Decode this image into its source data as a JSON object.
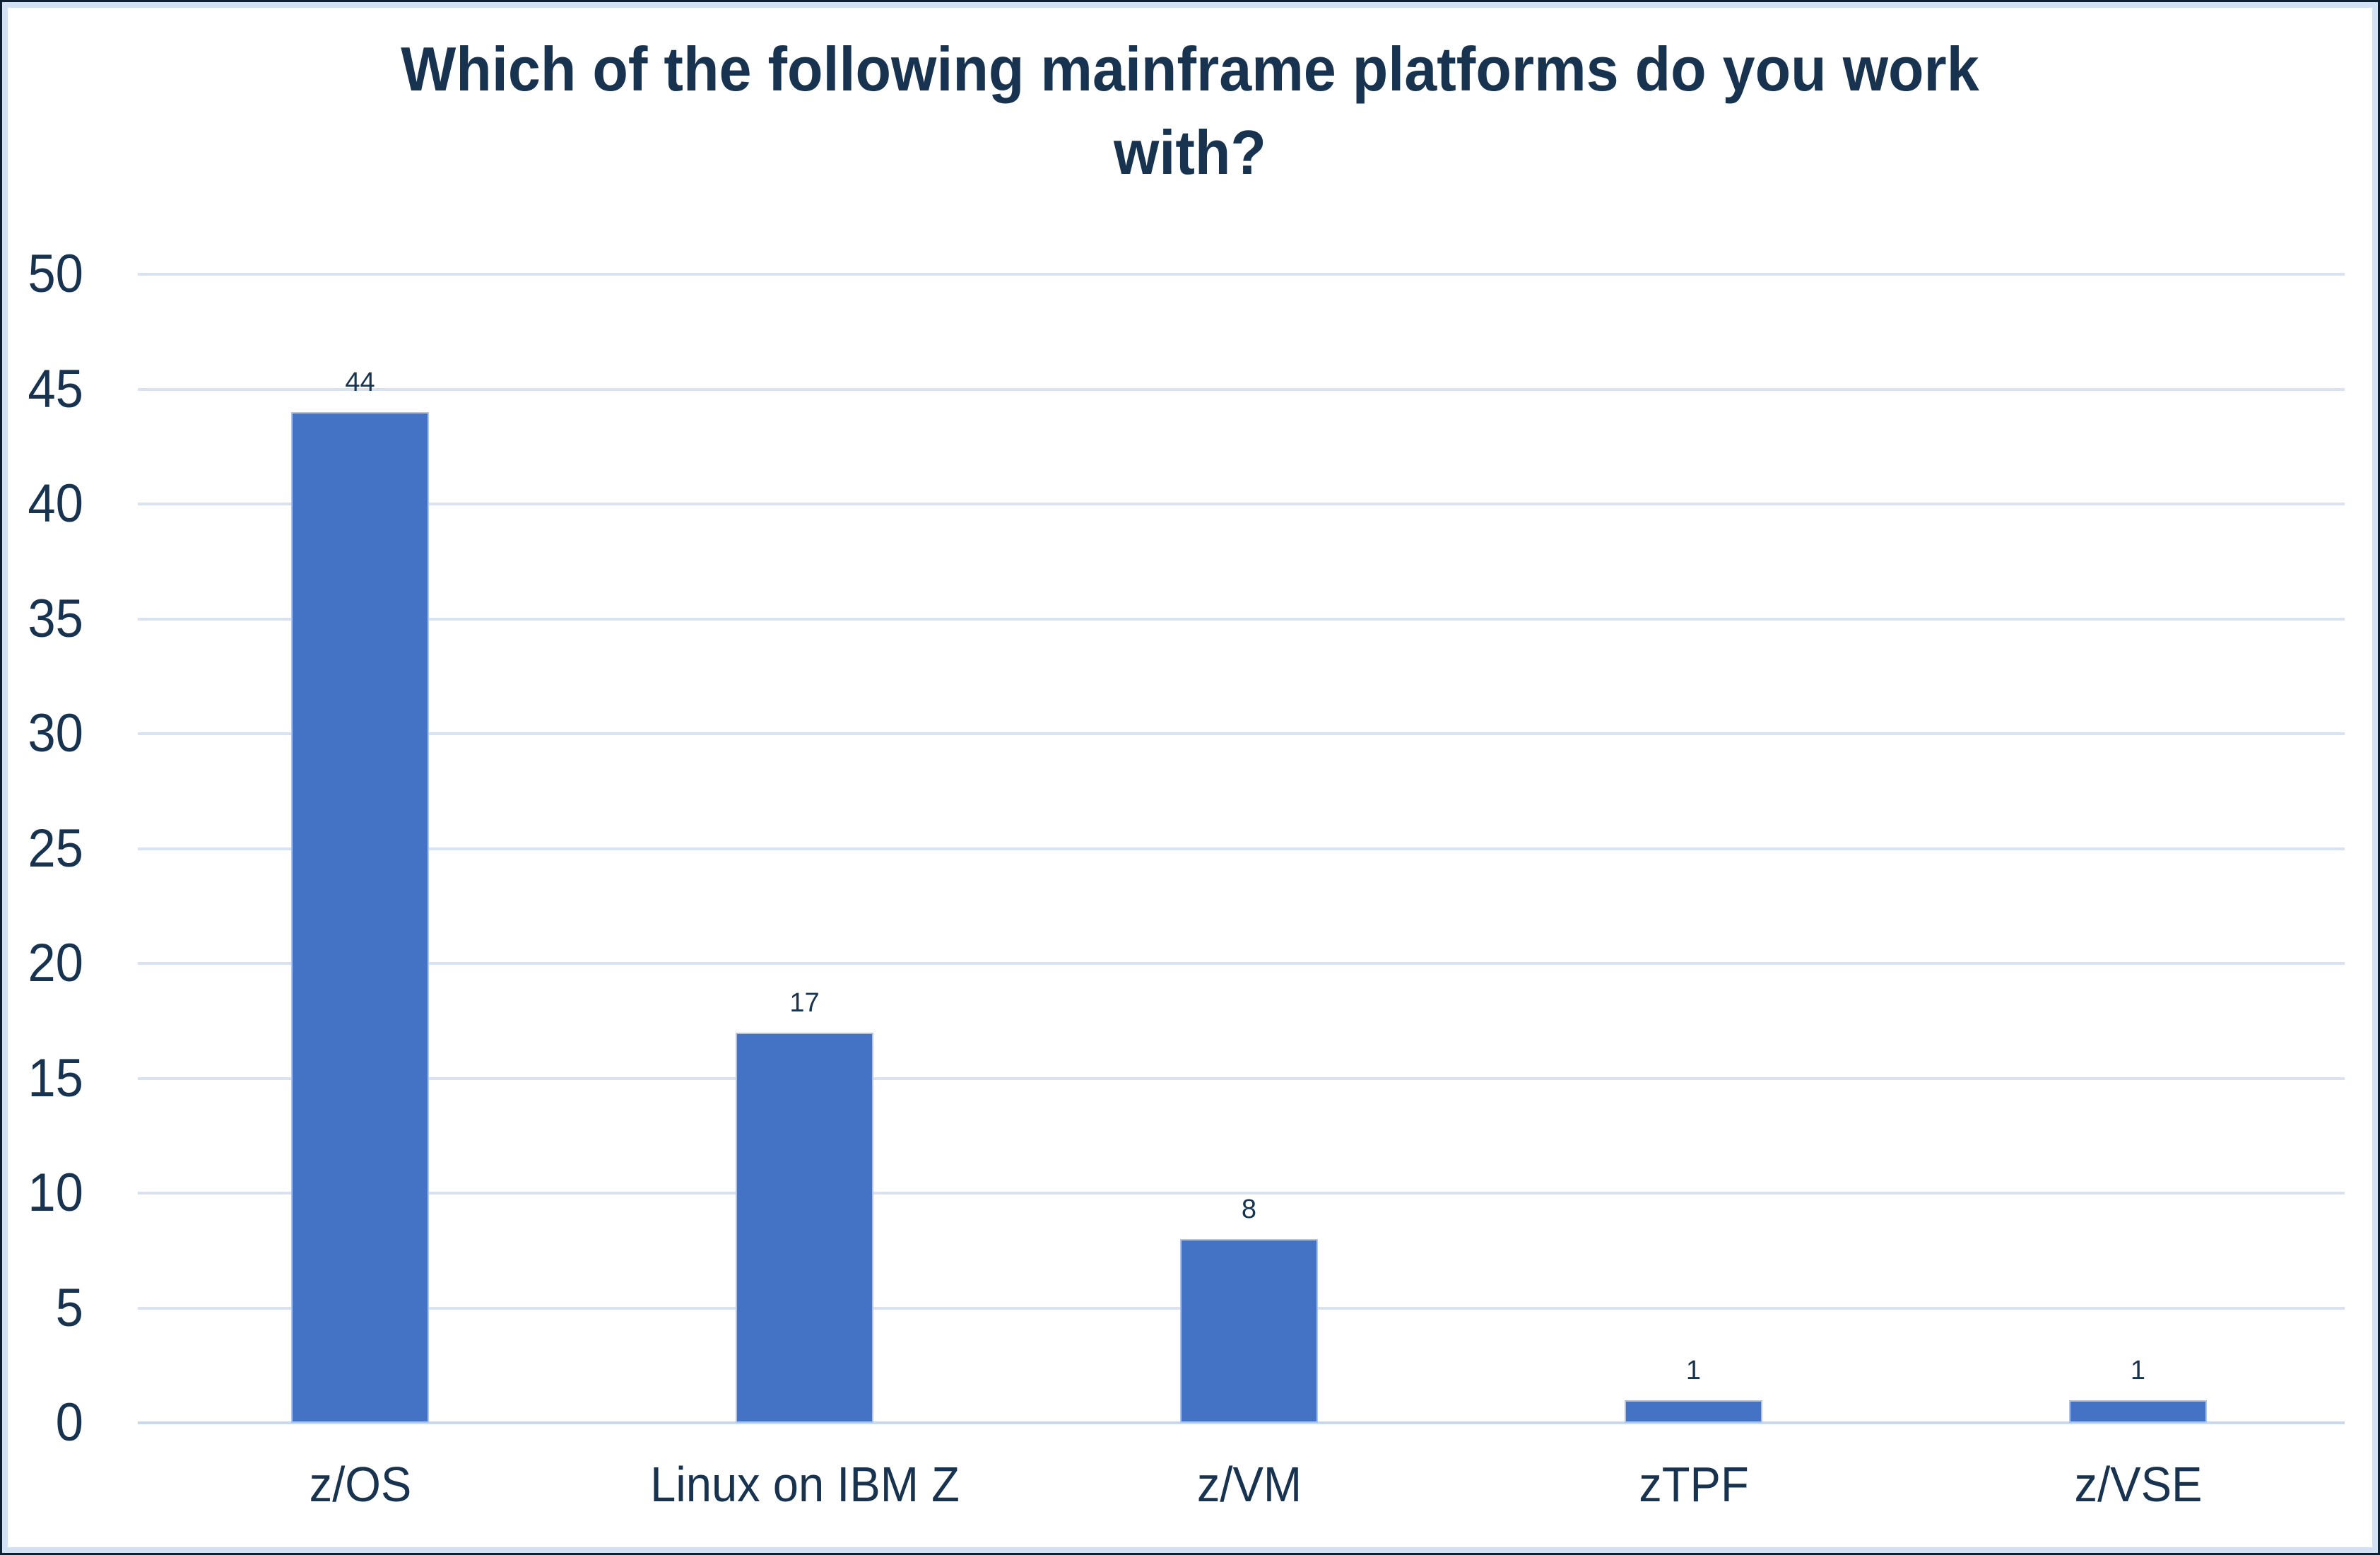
{
  "chart_data": {
    "type": "bar",
    "title": "Which of the following mainframe platforms do you work\nwith?",
    "categories": [
      "z/OS",
      "Linux on IBM Z",
      "z/VM",
      "zTPF",
      "z/VSE"
    ],
    "values": [
      44,
      17,
      8,
      1,
      1
    ],
    "data_labels": [
      "44",
      "17",
      "8",
      "1",
      "1"
    ],
    "xlabel": "",
    "ylabel": "",
    "ylim": [
      0,
      50
    ],
    "y_ticks": [
      0,
      5,
      10,
      15,
      20,
      25,
      30,
      35,
      40,
      45,
      50
    ],
    "grid": true,
    "legend_position": "none",
    "colors": {
      "background": "#FFFFFF",
      "bar": "#4472C4",
      "bar_edge": "#AFC4E8",
      "text": "#17334F",
      "gridline": "#D9E2F1",
      "baseline": "#C9D9EE",
      "canvas_border_outer": "#0D2133",
      "canvas_border_inner": "#D2E2F4"
    }
  }
}
